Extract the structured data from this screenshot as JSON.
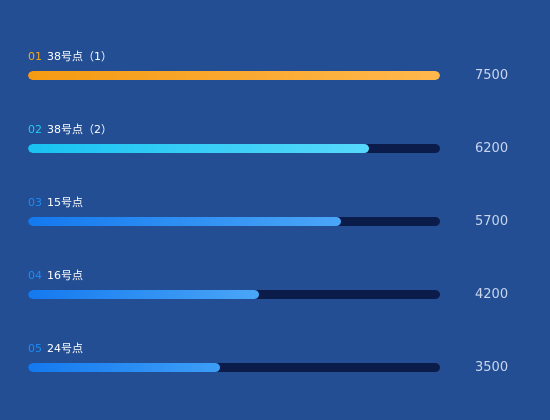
{
  "chart_data": {
    "type": "bar",
    "orientation": "horizontal",
    "categories": [
      "38号点（1）",
      "38号点（2）",
      "15号点",
      "16号点",
      "24号点"
    ],
    "ranks": [
      "01",
      "02",
      "03",
      "04",
      "05"
    ],
    "values": [
      7500,
      6200,
      5700,
      4200,
      3500
    ],
    "xlim": [
      0,
      7500
    ],
    "grid": false,
    "legend": "none"
  },
  "colors": {
    "background": "#234e94",
    "track": "#0b1c4a",
    "rank_colors": [
      "#f5a623",
      "#20c9f4",
      "#1b8cf5",
      "#1b8cf5",
      "#1b8cf5"
    ],
    "fill_gradients": [
      [
        "#f59a12",
        "#ffb84d"
      ],
      [
        "#18c3f2",
        "#56d9fb"
      ],
      [
        "#1479ef",
        "#4aa6f7"
      ],
      [
        "#1479ef",
        "#4aa6f7"
      ],
      [
        "#1479ef",
        "#3d9ef7"
      ]
    ]
  }
}
